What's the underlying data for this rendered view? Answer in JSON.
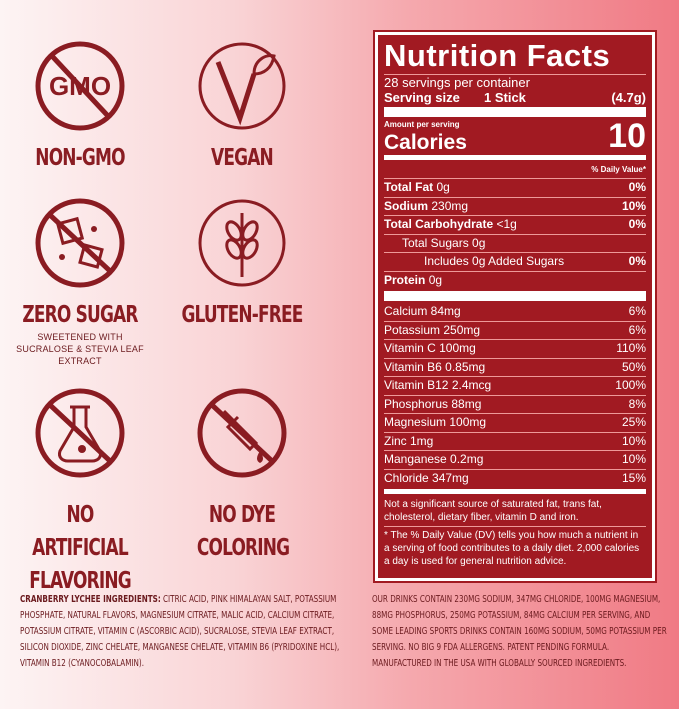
{
  "badges": [
    {
      "icon": "gmo-crossed-icon",
      "title": "NON-GMO",
      "icon_text": "GMO"
    },
    {
      "icon": "vegan-v-icon",
      "title": "VEGAN"
    },
    {
      "icon": "sugar-cubes-crossed-icon",
      "title": "ZERO SUGAR",
      "subtitle": "SWEETENED WITH SUCRALOSE & STEVIA LEAF EXTRACT"
    },
    {
      "icon": "wheat-crossed-icon",
      "title": "GLUTEN-FREE"
    },
    {
      "icon": "flask-crossed-icon",
      "title": "NO ARTIFICIAL FLAVORING"
    },
    {
      "icon": "dropper-crossed-icon",
      "title": "NO DYE COLORING"
    }
  ],
  "label": {
    "title": "Nutrition Facts",
    "servings": "28 servings per container",
    "serving_size_label": "Serving size",
    "serving_size_value": "1 Stick",
    "serving_size_weight": "(4.7g)",
    "amount_per_serving": "Amount per serving",
    "calories_label": "Calories",
    "calories": "10",
    "dv_header": "% Daily Value*",
    "macros": [
      {
        "name": "Total Fat",
        "amount": "0g",
        "dv": "0%"
      },
      {
        "name": "Sodium",
        "amount": "230mg",
        "dv": "10%"
      },
      {
        "name": "Total Carbohydrate",
        "amount": "<1g",
        "dv": "0%"
      },
      {
        "name": "Total Sugars 0g",
        "amount": "",
        "dv": ""
      },
      {
        "name": "Includes 0g Added Sugars",
        "amount": "",
        "dv": "0%"
      },
      {
        "name": "Protein",
        "amount": "0g",
        "dv": ""
      }
    ],
    "micros": [
      {
        "name": "Calcium 84mg",
        "dv": "6%"
      },
      {
        "name": "Potassium 250mg",
        "dv": "6%"
      },
      {
        "name": "Vitamin C 100mg",
        "dv": "110%"
      },
      {
        "name": "Vitamin B6 0.85mg",
        "dv": "50%"
      },
      {
        "name": "Vitamin B12 2.4mcg",
        "dv": "100%"
      },
      {
        "name": "Phosphorus 88mg",
        "dv": "8%"
      },
      {
        "name": "Magnesium 100mg",
        "dv": "25%"
      },
      {
        "name": "Zinc 1mg",
        "dv": "10%"
      },
      {
        "name": "Manganese 0.2mg",
        "dv": "10%"
      },
      {
        "name": "Chloride 347mg",
        "dv": "15%"
      }
    ],
    "not_significant": "Not a significant source of saturated fat, trans fat, cholesterol, dietary fiber, vitamin D and iron.",
    "dv_note": "* The % Daily Value (DV) tells you how much a nutrient in a serving of food contributes to a daily diet. 2,000 calories a day is used for general nutrition advice."
  },
  "ingredients_label": "CRANBERRY LYCHEE INGREDIENTS:",
  "ingredients": " CITRIC ACID, PINK HIMALAYAN SALT, POTASSIUM PHOSPHATE, NATURAL FLAVORS, MAGNESIUM CITRATE, MALIC ACID, CALCIUM CITRATE, POTASSIUM CITRATE, VITAMIN C (ASCORBIC ACID), SUCRALOSE, STEVIA LEAF EXTRACT, SILICON DIOXIDE, ZINC CHELATE, MANGANESE CHELATE, VITAMIN B6 (PYRIDOXINE HCL), VITAMIN B12 (CYANOCOBALAMIN).",
  "claims": "OUR DRINKS CONTAIN 230MG SODIUM, 347MG CHLORIDE, 100MG MAGNESIUM, 88MG PHOSPHORUS, 250MG POTASSIUM, 84MG CALCIUM PER SERVING, AND SOME LEADING SPORTS DRINKS CONTAIN 160MG SODIUM, 50MG POTASSIUM PER SERVING. NO BIG 9 FDA ALLERGENS. PATENT PENDING FORMULA. MANUFACTURED IN THE USA WITH GLOBALLY SOURCED INGREDIENTS.",
  "colors": {
    "label_bg": "#a11a22",
    "icon": "#8a1c22"
  }
}
